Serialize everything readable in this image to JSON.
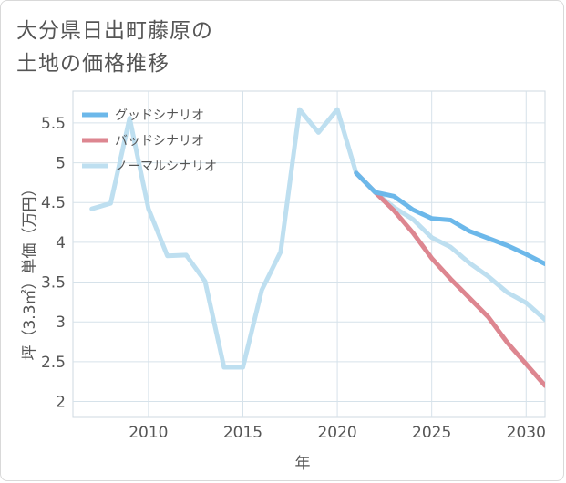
{
  "title": "大分県日出町藤原の\n土地の価格推移",
  "chart_data": {
    "type": "line",
    "xlabel": "年",
    "ylabel": "坪（3.3㎡）単価（万円）",
    "xlim": [
      2006,
      2031
    ],
    "ylim": [
      1.8,
      5.9
    ],
    "xticks": [
      2010,
      2015,
      2020,
      2025,
      2030
    ],
    "yticks": [
      2,
      2.5,
      3,
      3.5,
      4,
      4.5,
      5,
      5.5
    ],
    "grid": true,
    "legend_position": "top-left",
    "series": [
      {
        "name": "グッドシナリオ",
        "color": "#6cb8ea",
        "x": [
          2021,
          2022,
          2023,
          2024,
          2025,
          2026,
          2027,
          2028,
          2029,
          2030,
          2031
        ],
        "y": [
          4.87,
          4.63,
          4.58,
          4.41,
          4.3,
          4.28,
          4.14,
          4.05,
          3.96,
          3.85,
          3.73
        ]
      },
      {
        "name": "バッドシナリオ",
        "color": "#dd8690",
        "x": [
          2021,
          2022,
          2023,
          2024,
          2025,
          2026,
          2027,
          2028,
          2029,
          2030,
          2031
        ],
        "y": [
          4.87,
          4.63,
          4.4,
          4.12,
          3.8,
          3.54,
          3.3,
          3.06,
          2.74,
          2.47,
          2.2
        ]
      },
      {
        "name": "ノーマルシナリオ",
        "color": "#bedff0",
        "x": [
          2007,
          2008,
          2009,
          2010,
          2011,
          2012,
          2013,
          2014,
          2015,
          2016,
          2017,
          2018,
          2019,
          2020,
          2021,
          2022,
          2023,
          2024,
          2025,
          2026,
          2027,
          2028,
          2029,
          2030,
          2031
        ],
        "y": [
          4.42,
          4.49,
          5.56,
          4.42,
          3.83,
          3.84,
          3.51,
          2.43,
          2.43,
          3.4,
          3.88,
          5.67,
          5.38,
          5.67,
          4.87,
          4.63,
          4.44,
          4.29,
          4.06,
          3.94,
          3.74,
          3.57,
          3.37,
          3.24,
          3.03
        ]
      }
    ]
  }
}
